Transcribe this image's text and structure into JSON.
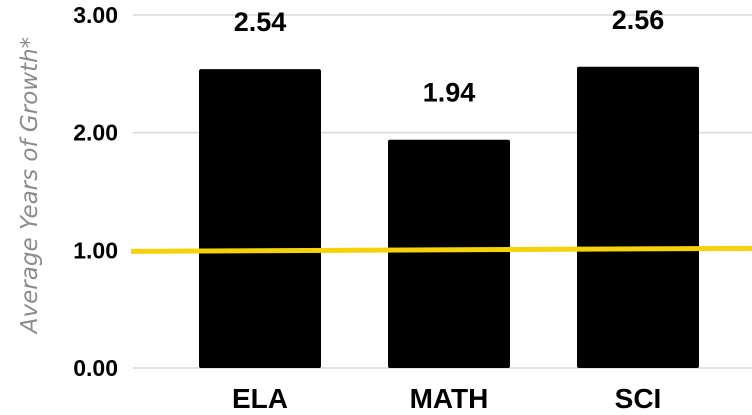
{
  "chart_data": {
    "type": "bar",
    "categories": [
      "ELA",
      "MATH",
      "SCI"
    ],
    "values": [
      2.54,
      1.94,
      2.56
    ],
    "value_labels": [
      "2.54",
      "1.94",
      "2.56"
    ],
    "ylabel": "Average Years of Growth*",
    "xlabel": "",
    "ylim": [
      0,
      3
    ],
    "yticks": [
      0,
      1,
      2,
      3
    ],
    "ytick_labels": [
      "0.00",
      "1.00",
      "2.00",
      "3.00"
    ],
    "grid": true,
    "reference_line": {
      "value": 1.0,
      "color": "#f5d20a"
    },
    "bar_color": "#000000",
    "grid_color": "#d9d9d9"
  }
}
